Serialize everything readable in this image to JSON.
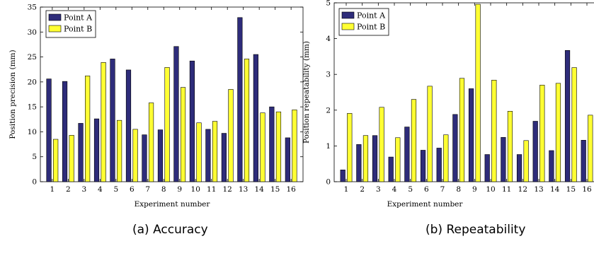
{
  "chart_data": [
    {
      "type": "bar",
      "caption": "(a) Accuracy",
      "xlabel": "Experiment number",
      "ylabel": "Position precision (mm)",
      "categories": [
        "1",
        "2",
        "3",
        "4",
        "5",
        "6",
        "7",
        "8",
        "9",
        "10",
        "11",
        "12",
        "13",
        "14",
        "15",
        "16"
      ],
      "ylim": [
        0,
        35
      ],
      "yticks": [
        0,
        5,
        10,
        15,
        20,
        25,
        30,
        35
      ],
      "legend_position": "top-left",
      "series": [
        {
          "name": "Point A",
          "color": "#2e2c7a",
          "values": [
            20.6,
            20.1,
            11.7,
            12.6,
            24.6,
            22.4,
            9.4,
            10.4,
            27.1,
            24.2,
            10.5,
            9.7,
            32.9,
            25.5,
            15.0,
            8.8
          ]
        },
        {
          "name": "Point B",
          "color": "#ffff33",
          "values": [
            8.5,
            9.3,
            21.2,
            23.9,
            12.3,
            10.5,
            15.8,
            22.9,
            18.9,
            11.8,
            12.1,
            18.5,
            24.6,
            13.8,
            14.0,
            14.4
          ]
        }
      ]
    },
    {
      "type": "bar",
      "caption": "(b) Repeatability",
      "xlabel": "Experiment number",
      "ylabel": "Position repeatability (mm)",
      "categories": [
        "1",
        "2",
        "3",
        "4",
        "5",
        "6",
        "7",
        "8",
        "9",
        "10",
        "11",
        "12",
        "13",
        "14",
        "15",
        "16"
      ],
      "ylim": [
        0,
        5
      ],
      "yticks": [
        0,
        1,
        2,
        3,
        4,
        5
      ],
      "legend_position": "top-left",
      "series": [
        {
          "name": "Point A",
          "color": "#2e2c7a",
          "values": [
            0.33,
            1.04,
            1.29,
            0.69,
            1.53,
            0.88,
            0.94,
            1.88,
            2.6,
            0.76,
            1.24,
            0.76,
            1.69,
            0.87,
            3.67,
            1.16
          ]
        },
        {
          "name": "Point B",
          "color": "#ffff33",
          "values": [
            1.91,
            1.29,
            2.08,
            1.23,
            2.3,
            2.67,
            1.31,
            2.89,
            4.96,
            2.84,
            1.97,
            1.15,
            2.7,
            2.75,
            3.19,
            1.86
          ]
        }
      ]
    }
  ]
}
